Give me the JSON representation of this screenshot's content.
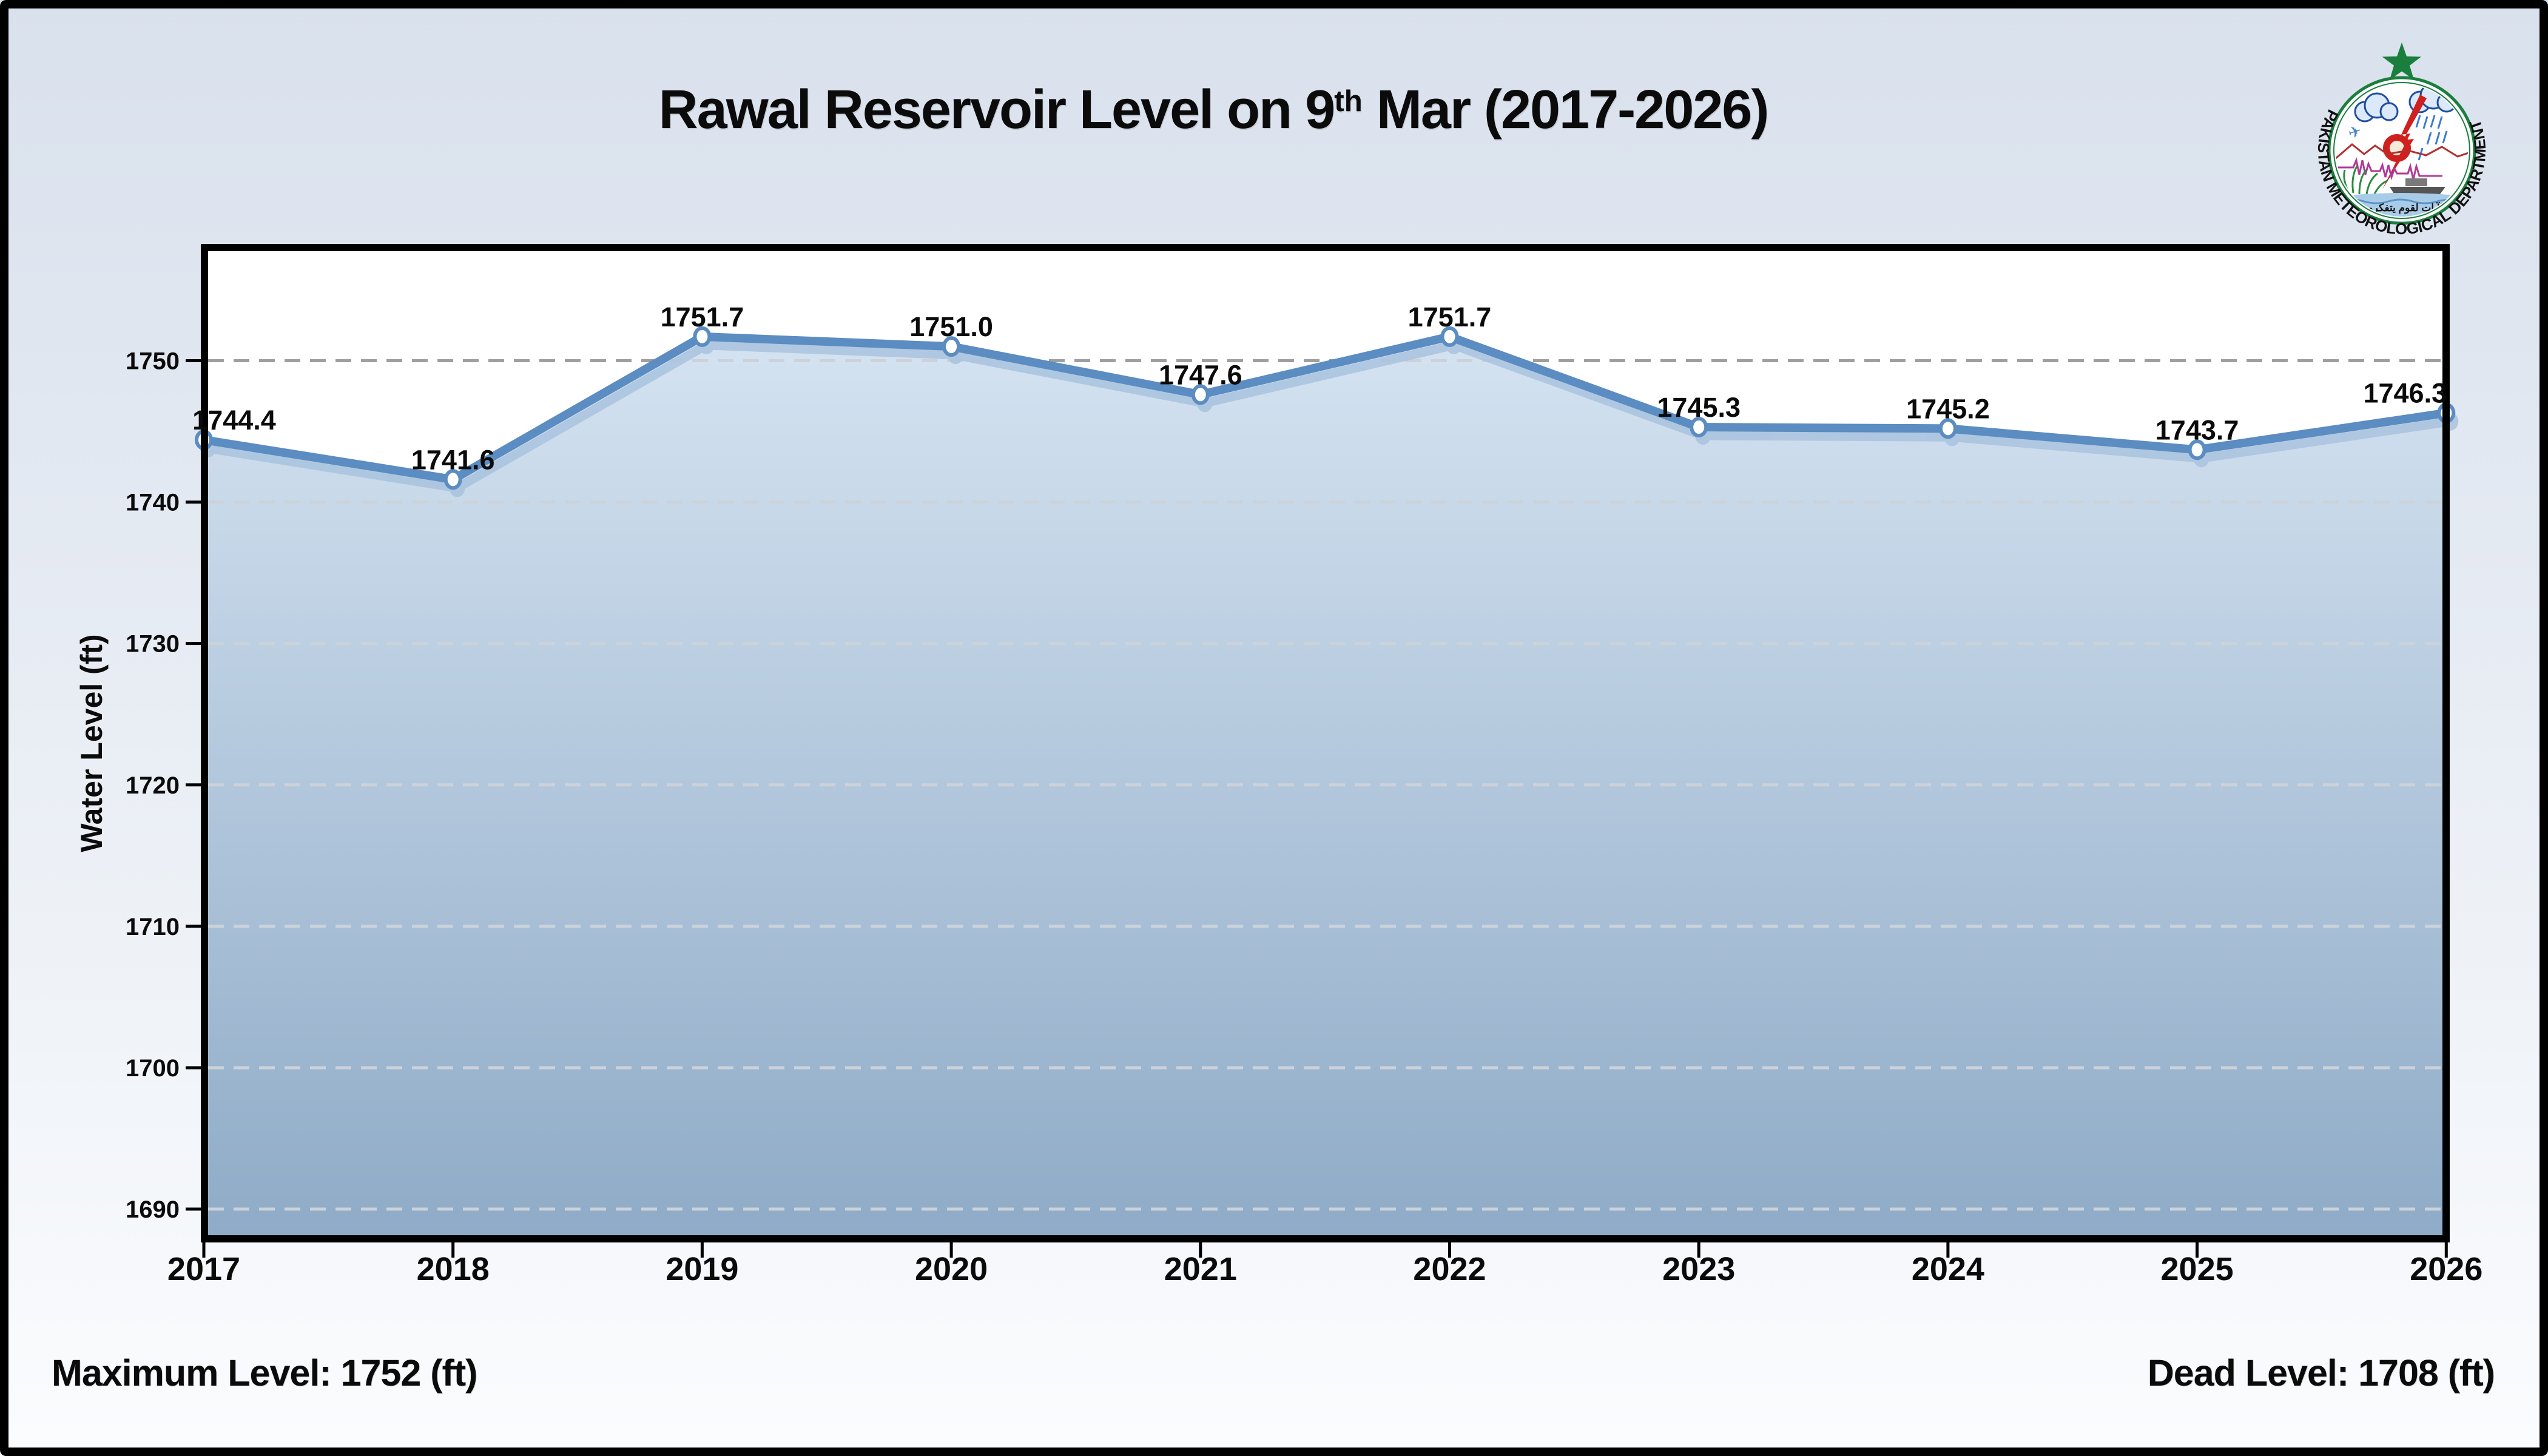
{
  "title": {
    "prefix": "Rawal Reservoir Level on 9",
    "superscript": "th",
    "suffix": " Mar (2017-2026)"
  },
  "footer": {
    "maximum_level": "Maximum Level: 1752 (ft)",
    "dead_level": "Dead Level: 1708 (ft)"
  },
  "logo": {
    "organization": "PAKISTAN METEOROLOGICAL DEPARTMENT",
    "calligraphy": "لآيات لقوم يتفكرون",
    "ring_color": "#1a7e3c"
  },
  "chart_data": {
    "type": "area",
    "title": "Rawal Reservoir Level on 9th Mar (2017-2026)",
    "categories": [
      "2017",
      "2018",
      "2019",
      "2020",
      "2021",
      "2022",
      "2023",
      "2024",
      "2025",
      "2026"
    ],
    "values": [
      1744.4,
      1741.6,
      1751.7,
      1751.0,
      1747.6,
      1751.7,
      1745.3,
      1745.2,
      1743.7,
      1746.3
    ],
    "xlabel": "",
    "ylabel": "Water Level (ft)",
    "yticks": [
      1750,
      1740,
      1730,
      1720,
      1710,
      1700,
      1690
    ],
    "ylim": [
      1687.9,
      1758.0
    ],
    "grid": "horizontal-dashed",
    "legend": "none",
    "annotations": {
      "maximum_level_ft": 1752,
      "dead_level_ft": 1708
    }
  },
  "chart_style": {
    "line_color": "#5b8cc2",
    "shadow_color": "#a9c3de",
    "marker_fill": "#ffffff",
    "area_top_color": "#d5e3f1",
    "area_bottom_color": "#8fabc7",
    "grid_dark_color": "#9f9f9f",
    "grid_light_color": "#ccd2da",
    "plot_background": "#ffffff",
    "axis_color": "#000000",
    "label_color": "#0b0b0b"
  }
}
